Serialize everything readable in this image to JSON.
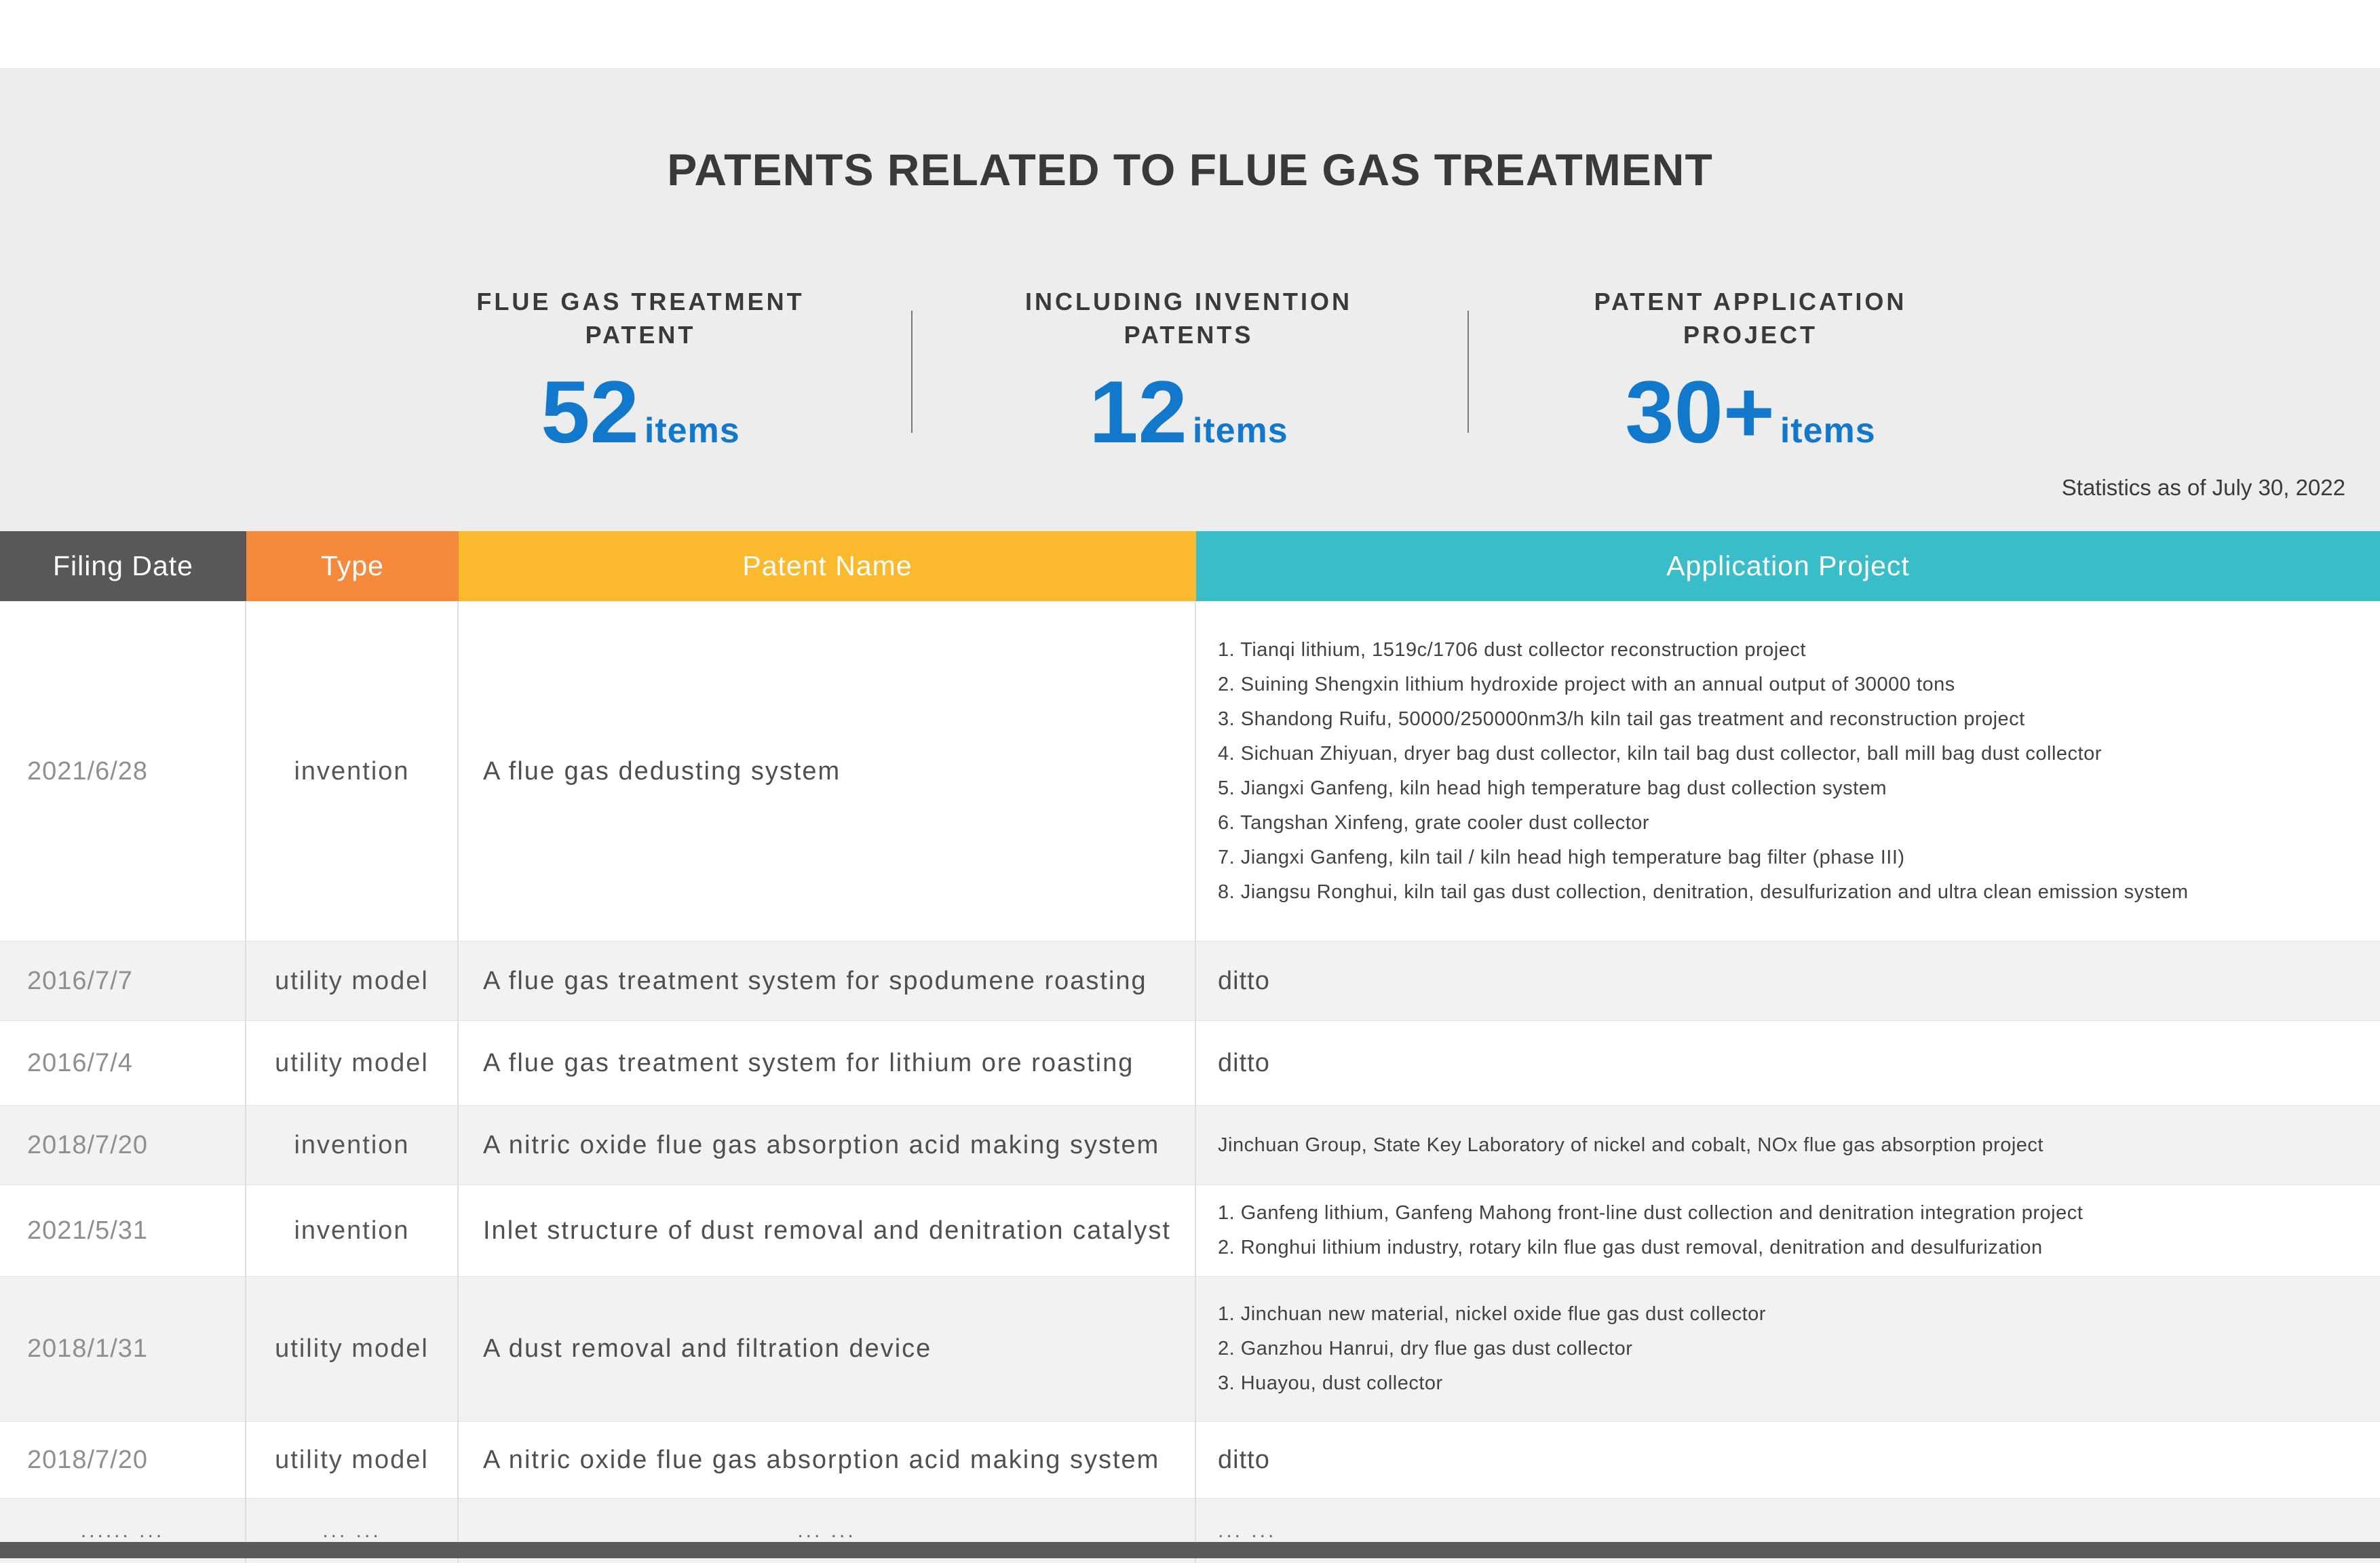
{
  "page": {
    "title": "PATENTS RELATED TO FLUE GAS TREATMENT",
    "note": "Statistics as of July 30, 2022"
  },
  "stats": [
    {
      "label_line1": "FLUE GAS TREATMENT",
      "label_line2": "PATENT",
      "value": "52",
      "unit": "items"
    },
    {
      "label_line1": "INCLUDING INVENTION",
      "label_line2": "PATENTS",
      "value": "12",
      "unit": "items"
    },
    {
      "label_line1": "PATENT APPLICATION",
      "label_line2": "PROJECT",
      "value": "30+",
      "unit": "items"
    }
  ],
  "colors": {
    "accent_blue": "#1278CB",
    "header_filing_date": "#58585A",
    "header_type": "#F5893C",
    "header_patent_name": "#FBB92E",
    "header_application_project": "#38BDC9",
    "page_background": "#EDEDED",
    "shaded_row": "#F2F2F3",
    "bottom_bar": "#5A5A5C"
  },
  "table": {
    "headers": [
      "Filing Date",
      "Type",
      "Patent Name",
      "Application Project"
    ],
    "rows": [
      {
        "filing_date": "2021/6/28",
        "type": "invention",
        "patent_name": "A flue gas dedusting system",
        "application": [
          "1. Tianqi lithium, 1519c/1706 dust collector reconstruction project",
          "2. Suining Shengxin lithium hydroxide project with an annual output of 30000 tons",
          "3. Shandong Ruifu, 50000/250000nm3/h kiln tail gas treatment and reconstruction project",
          "4. Sichuan Zhiyuan, dryer bag dust collector, kiln tail bag dust collector, ball mill bag dust collector",
          "5. Jiangxi Ganfeng, kiln head high temperature bag dust collection system",
          "6. Tangshan Xinfeng, grate cooler dust collector",
          "7. Jiangxi Ganfeng, kiln tail / kiln head high temperature bag filter (phase III)",
          "8. Jiangsu Ronghui, kiln tail gas dust collection, denitration, desulfurization and ultra clean emission system"
        ]
      },
      {
        "filing_date": "2016/7/7",
        "type": "utility model",
        "patent_name": "A flue gas treatment system for spodumene roasting",
        "application": "ditto"
      },
      {
        "filing_date": "2016/7/4",
        "type": "utility model",
        "patent_name": "A flue gas treatment system for lithium ore roasting",
        "application": "ditto"
      },
      {
        "filing_date": "2018/7/20",
        "type": "invention",
        "patent_name": "A nitric oxide flue gas absorption acid making system",
        "application": [
          "Jinchuan Group, State Key Laboratory of nickel and cobalt, NOx flue gas absorption project"
        ]
      },
      {
        "filing_date": "2021/5/31",
        "type": "invention",
        "patent_name": "Inlet structure of dust removal and denitration catalyst",
        "application": [
          "1. Ganfeng lithium, Ganfeng Mahong front-line dust collection and denitration integration project",
          "2. Ronghui lithium industry, rotary kiln flue gas dust removal, denitration and desulfurization"
        ]
      },
      {
        "filing_date": "2018/1/31",
        "type": "utility model",
        "patent_name": "A dust removal and filtration device",
        "application": [
          "1. Jinchuan new material, nickel oxide flue gas dust collector",
          "2. Ganzhou Hanrui, dry flue gas dust collector",
          "3. Huayou, dust collector"
        ]
      },
      {
        "filing_date": "2018/7/20",
        "type": "utility model",
        "patent_name": "A nitric oxide flue gas absorption acid making system",
        "application": "ditto"
      },
      {
        "filing_date": "...... ...",
        "type": "... ...",
        "patent_name": "... ...",
        "application": "... ..."
      }
    ]
  }
}
